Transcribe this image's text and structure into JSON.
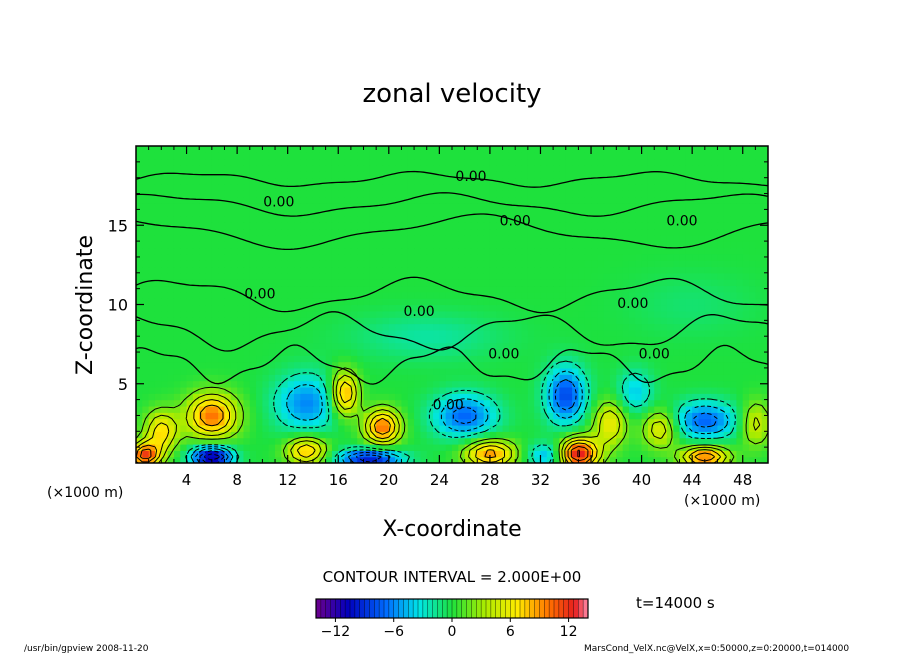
{
  "chart_data": {
    "type": "heatmap",
    "title": "zonal velocity",
    "xlabel": "X-coordinate",
    "ylabel": "Z-coordinate",
    "x_unit": "(×1000 m)",
    "y_unit": "(×1000 m)",
    "xlim": [
      0,
      50
    ],
    "ylim": [
      0,
      20
    ],
    "x_ticks": [
      4,
      8,
      12,
      16,
      20,
      24,
      28,
      32,
      36,
      40,
      44,
      48
    ],
    "y_ticks": [
      5,
      10,
      15
    ],
    "contour_interval_text": "CONTOUR INTERVAL = 2.000E+00",
    "contour_labels": [
      {
        "text": "0.00",
        "x": 26.5,
        "z": 18.1
      },
      {
        "text": "0.00",
        "x": 11.3,
        "z": 16.5
      },
      {
        "text": "0.00",
        "x": 30.0,
        "z": 15.3
      },
      {
        "text": "0.00",
        "x": 43.2,
        "z": 15.3
      },
      {
        "text": "0.00",
        "x": 9.8,
        "z": 10.7
      },
      {
        "text": "0.00",
        "x": 22.4,
        "z": 9.6
      },
      {
        "text": "0.00",
        "x": 29.1,
        "z": 6.9
      },
      {
        "text": "0.00",
        "x": 39.3,
        "z": 10.1
      },
      {
        "text": "0.00",
        "x": 41.0,
        "z": 6.9
      },
      {
        "text": "0.00",
        "x": 24.7,
        "z": 3.7
      }
    ],
    "features": [
      {
        "x": 6.0,
        "z": 3.0,
        "value": 10,
        "rx": 2.0,
        "rz": 1.4
      },
      {
        "x": 2.0,
        "z": 2.0,
        "value": 7,
        "rx": 1.3,
        "rz": 1.3
      },
      {
        "x": 0.7,
        "z": 0.5,
        "value": 11,
        "rx": 1.2,
        "rz": 0.8
      },
      {
        "x": 6.0,
        "z": 0.4,
        "value": -12,
        "rx": 1.6,
        "rz": 0.7
      },
      {
        "x": 13.5,
        "z": 3.8,
        "value": -6,
        "rx": 2.5,
        "rz": 1.8
      },
      {
        "x": 13.5,
        "z": 0.8,
        "value": 8,
        "rx": 1.6,
        "rz": 0.9
      },
      {
        "x": 16.5,
        "z": 4.4,
        "value": 9,
        "rx": 1.1,
        "rz": 1.4
      },
      {
        "x": 19.5,
        "z": 2.3,
        "value": 10,
        "rx": 1.4,
        "rz": 1.1
      },
      {
        "x": 18.5,
        "z": 0.3,
        "value": -10,
        "rx": 2.5,
        "rz": 0.6
      },
      {
        "x": 26.0,
        "z": 3.0,
        "value": -7,
        "rx": 2.5,
        "rz": 1.4
      },
      {
        "x": 28.0,
        "z": 0.6,
        "value": 9,
        "rx": 2.0,
        "rz": 0.9
      },
      {
        "x": 32.5,
        "z": 0.5,
        "value": -5,
        "rx": 1.5,
        "rz": 0.8
      },
      {
        "x": 34.0,
        "z": 4.3,
        "value": -8,
        "rx": 1.6,
        "rz": 1.8
      },
      {
        "x": 35.0,
        "z": 0.6,
        "value": 13,
        "rx": 1.6,
        "rz": 1.0
      },
      {
        "x": 37.5,
        "z": 2.5,
        "value": 6,
        "rx": 1.3,
        "rz": 1.4
      },
      {
        "x": 39.5,
        "z": 4.5,
        "value": -4,
        "rx": 1.4,
        "rz": 1.4
      },
      {
        "x": 41.5,
        "z": 2.2,
        "value": 6,
        "rx": 1.4,
        "rz": 1.2
      },
      {
        "x": 45.0,
        "z": 2.7,
        "value": -7,
        "rx": 2.6,
        "rz": 1.2
      },
      {
        "x": 45.0,
        "z": 0.4,
        "value": 10,
        "rx": 1.8,
        "rz": 0.7
      },
      {
        "x": 49.0,
        "z": 2.5,
        "value": 5,
        "rx": 1.2,
        "rz": 1.4
      },
      {
        "x": 23.0,
        "z": 8.0,
        "value": -2,
        "rx": 6.0,
        "rz": 1.5
      },
      {
        "x": 44.0,
        "z": 10.0,
        "value": -1,
        "rx": 5.0,
        "rz": 2.0
      }
    ],
    "colorbar": {
      "min": -14,
      "max": 14,
      "tick_values": [
        -12,
        -6,
        0,
        6,
        12
      ],
      "tick_labels": [
        "−12",
        "−6",
        "0",
        "6",
        "12"
      ]
    },
    "time_label": "t=14000 s"
  },
  "footer": {
    "left": "/usr/bin/gpview  2008-11-20",
    "right": "MarsCond_VelX.nc@VelX,x=0:50000,z=0:20000,t=014000"
  }
}
